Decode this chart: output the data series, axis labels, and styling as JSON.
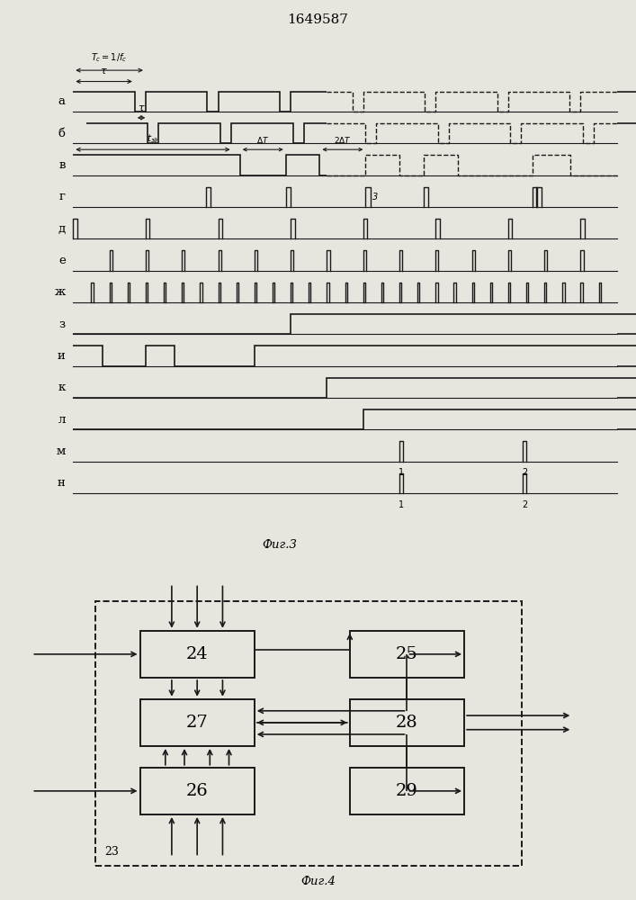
{
  "title": "1649587",
  "fig3_label": "Фиг.3",
  "fig4_label": "Фиг.4",
  "channels": [
    "а",
    "б",
    "в",
    "г",
    "д",
    "е",
    "ж",
    "з",
    "и",
    "к",
    "л",
    "м",
    "н"
  ],
  "bg_color": "#e8e4de",
  "line_color": "#1a1a1a"
}
